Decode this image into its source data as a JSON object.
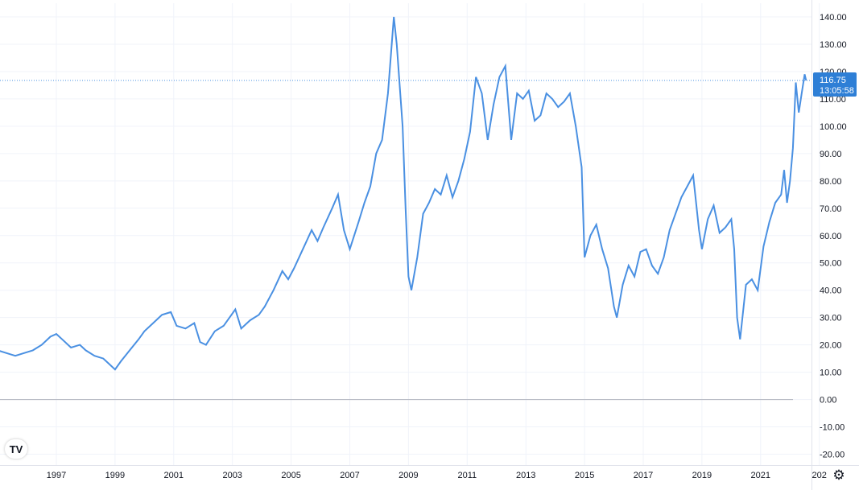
{
  "chart_data": {
    "type": "line",
    "series": [
      {
        "color": "#4a90e2",
        "points": [
          [
            1995.0,
            18
          ],
          [
            1995.3,
            17
          ],
          [
            1995.6,
            16
          ],
          [
            1995.9,
            17
          ],
          [
            1996.2,
            18
          ],
          [
            1996.5,
            20
          ],
          [
            1996.8,
            23
          ],
          [
            1997.0,
            24
          ],
          [
            1997.2,
            22
          ],
          [
            1997.5,
            19
          ],
          [
            1997.8,
            20
          ],
          [
            1998.0,
            18
          ],
          [
            1998.3,
            16
          ],
          [
            1998.6,
            15
          ],
          [
            1998.8,
            13
          ],
          [
            1999.0,
            11
          ],
          [
            1999.2,
            14
          ],
          [
            1999.5,
            18
          ],
          [
            1999.8,
            22
          ],
          [
            2000.0,
            25
          ],
          [
            2000.3,
            28
          ],
          [
            2000.6,
            31
          ],
          [
            2000.9,
            32
          ],
          [
            2001.1,
            27
          ],
          [
            2001.4,
            26
          ],
          [
            2001.7,
            28
          ],
          [
            2001.9,
            21
          ],
          [
            2002.1,
            20
          ],
          [
            2002.4,
            25
          ],
          [
            2002.7,
            27
          ],
          [
            2002.9,
            30
          ],
          [
            2003.1,
            33
          ],
          [
            2003.3,
            26
          ],
          [
            2003.6,
            29
          ],
          [
            2003.9,
            31
          ],
          [
            2004.1,
            34
          ],
          [
            2004.4,
            40
          ],
          [
            2004.7,
            47
          ],
          [
            2004.9,
            44
          ],
          [
            2005.1,
            48
          ],
          [
            2005.4,
            55
          ],
          [
            2005.7,
            62
          ],
          [
            2005.9,
            58
          ],
          [
            2006.1,
            63
          ],
          [
            2006.4,
            70
          ],
          [
            2006.6,
            75
          ],
          [
            2006.8,
            62
          ],
          [
            2007.0,
            55
          ],
          [
            2007.3,
            65
          ],
          [
            2007.5,
            72
          ],
          [
            2007.7,
            78
          ],
          [
            2007.9,
            90
          ],
          [
            2008.1,
            95
          ],
          [
            2008.3,
            112
          ],
          [
            2008.5,
            140
          ],
          [
            2008.6,
            130
          ],
          [
            2008.8,
            100
          ],
          [
            2008.9,
            70
          ],
          [
            2009.0,
            45
          ],
          [
            2009.1,
            40
          ],
          [
            2009.3,
            52
          ],
          [
            2009.5,
            68
          ],
          [
            2009.7,
            72
          ],
          [
            2009.9,
            77
          ],
          [
            2010.1,
            75
          ],
          [
            2010.3,
            82
          ],
          [
            2010.5,
            74
          ],
          [
            2010.7,
            80
          ],
          [
            2010.9,
            88
          ],
          [
            2011.1,
            98
          ],
          [
            2011.3,
            118
          ],
          [
            2011.5,
            112
          ],
          [
            2011.7,
            95
          ],
          [
            2011.9,
            108
          ],
          [
            2012.1,
            118
          ],
          [
            2012.3,
            122
          ],
          [
            2012.5,
            95
          ],
          [
            2012.7,
            112
          ],
          [
            2012.9,
            110
          ],
          [
            2013.1,
            113
          ],
          [
            2013.3,
            102
          ],
          [
            2013.5,
            104
          ],
          [
            2013.7,
            112
          ],
          [
            2013.9,
            110
          ],
          [
            2014.1,
            107
          ],
          [
            2014.3,
            109
          ],
          [
            2014.5,
            112
          ],
          [
            2014.7,
            100
          ],
          [
            2014.9,
            85
          ],
          [
            2015.0,
            52
          ],
          [
            2015.2,
            60
          ],
          [
            2015.4,
            64
          ],
          [
            2015.6,
            55
          ],
          [
            2015.8,
            48
          ],
          [
            2016.0,
            34
          ],
          [
            2016.1,
            30
          ],
          [
            2016.3,
            42
          ],
          [
            2016.5,
            49
          ],
          [
            2016.7,
            45
          ],
          [
            2016.9,
            54
          ],
          [
            2017.1,
            55
          ],
          [
            2017.3,
            49
          ],
          [
            2017.5,
            46
          ],
          [
            2017.7,
            52
          ],
          [
            2017.9,
            62
          ],
          [
            2018.1,
            68
          ],
          [
            2018.3,
            74
          ],
          [
            2018.5,
            78
          ],
          [
            2018.7,
            82
          ],
          [
            2018.9,
            62
          ],
          [
            2019.0,
            55
          ],
          [
            2019.2,
            66
          ],
          [
            2019.4,
            71
          ],
          [
            2019.6,
            61
          ],
          [
            2019.8,
            63
          ],
          [
            2020.0,
            66
          ],
          [
            2020.1,
            55
          ],
          [
            2020.2,
            30
          ],
          [
            2020.3,
            22
          ],
          [
            2020.5,
            42
          ],
          [
            2020.7,
            44
          ],
          [
            2020.9,
            40
          ],
          [
            2021.1,
            56
          ],
          [
            2021.3,
            65
          ],
          [
            2021.5,
            72
          ],
          [
            2021.7,
            75
          ],
          [
            2021.8,
            84
          ],
          [
            2021.9,
            72
          ],
          [
            2022.0,
            80
          ],
          [
            2022.1,
            92
          ],
          [
            2022.2,
            116
          ],
          [
            2022.3,
            105
          ],
          [
            2022.4,
            112
          ],
          [
            2022.5,
            119
          ],
          [
            2022.55,
            116.75
          ]
        ]
      }
    ],
    "x_ticks": [
      "1997",
      "1999",
      "2001",
      "2003",
      "2005",
      "2007",
      "2009",
      "2011",
      "2013",
      "2015",
      "2017",
      "2019",
      "2021",
      "202"
    ],
    "y_ticks": [
      "140.00",
      "130.00",
      "120.00",
      "110.00",
      "100.00",
      "90.00",
      "80.00",
      "70.00",
      "60.00",
      "50.00",
      "40.00",
      "30.00",
      "20.00",
      "10.00",
      "0.00",
      "-10.00",
      "-20.00"
    ],
    "ylim": [
      -20,
      140
    ],
    "xlim": [
      1995.0,
      2023.0
    ],
    "last_price": {
      "value": 116.75,
      "label": "116.75",
      "countdown": "13:05:58",
      "color": "#2e7fd6"
    },
    "logo": {
      "text": "TV"
    },
    "settings_icon": "gear-icon",
    "grid": true
  }
}
